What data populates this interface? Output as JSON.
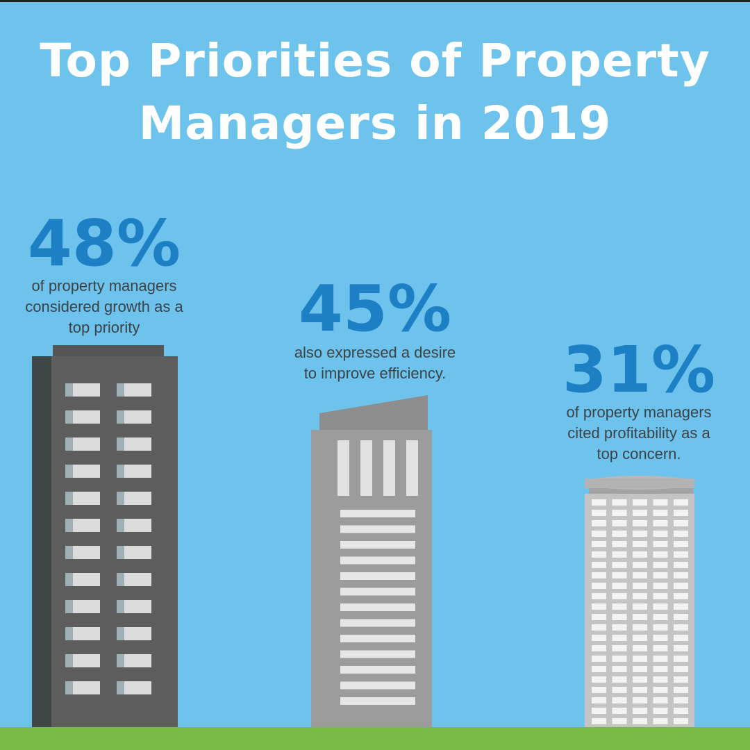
{
  "title": {
    "line1": "Top Priorities of Property",
    "line2": "Managers in 2019"
  },
  "stats": [
    {
      "value": "48%",
      "line1": "of property managers",
      "line2": "considered growth as a",
      "line3": "top priority"
    },
    {
      "value": "45%",
      "line1": "also expressed a desire",
      "line2": "to improve efficiency."
    },
    {
      "value": "31%",
      "line1": "of property managers",
      "line2": "cited profitability as a",
      "line3": "top concern."
    }
  ],
  "colors": {
    "sky": "#6dc3ec",
    "ground": "#7ab946",
    "title": "#ffffff",
    "stat_number": "#1d80c5",
    "stat_text": "#3c4347"
  }
}
